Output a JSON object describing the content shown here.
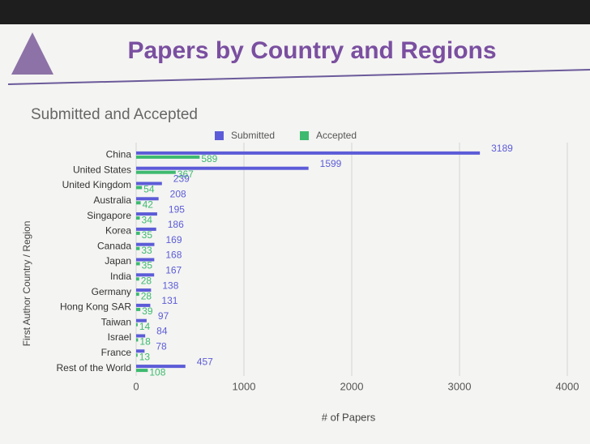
{
  "chart_data": {
    "type": "hbar",
    "title": "Papers by Country and Regions",
    "subtitle": "Submitted and Accepted",
    "x_label": "# of Papers",
    "y_label": "First Author Country / Region",
    "categories": [
      "China",
      "United States",
      "United Kingdom",
      "Australia",
      "Singapore",
      "Korea",
      "Canada",
      "Japan",
      "India",
      "Germany",
      "Hong Kong SAR",
      "Taiwan",
      "Israel",
      "France",
      "Rest of the World"
    ],
    "series": [
      {
        "name": "Submitted",
        "color": "#5c5cd8",
        "values": [
          3189,
          1599,
          239,
          208,
          195,
          186,
          169,
          168,
          167,
          138,
          131,
          97,
          84,
          78,
          457
        ]
      },
      {
        "name": "Accepted",
        "color": "#3dba6f",
        "values": [
          589,
          367,
          54,
          42,
          34,
          35,
          33,
          35,
          28,
          28,
          39,
          14,
          18,
          13,
          108
        ]
      }
    ],
    "xlim": [
      0,
      4000
    ],
    "xticks": [
      0,
      1000,
      2000,
      3000,
      4000
    ],
    "grid": true,
    "legend": "top"
  }
}
